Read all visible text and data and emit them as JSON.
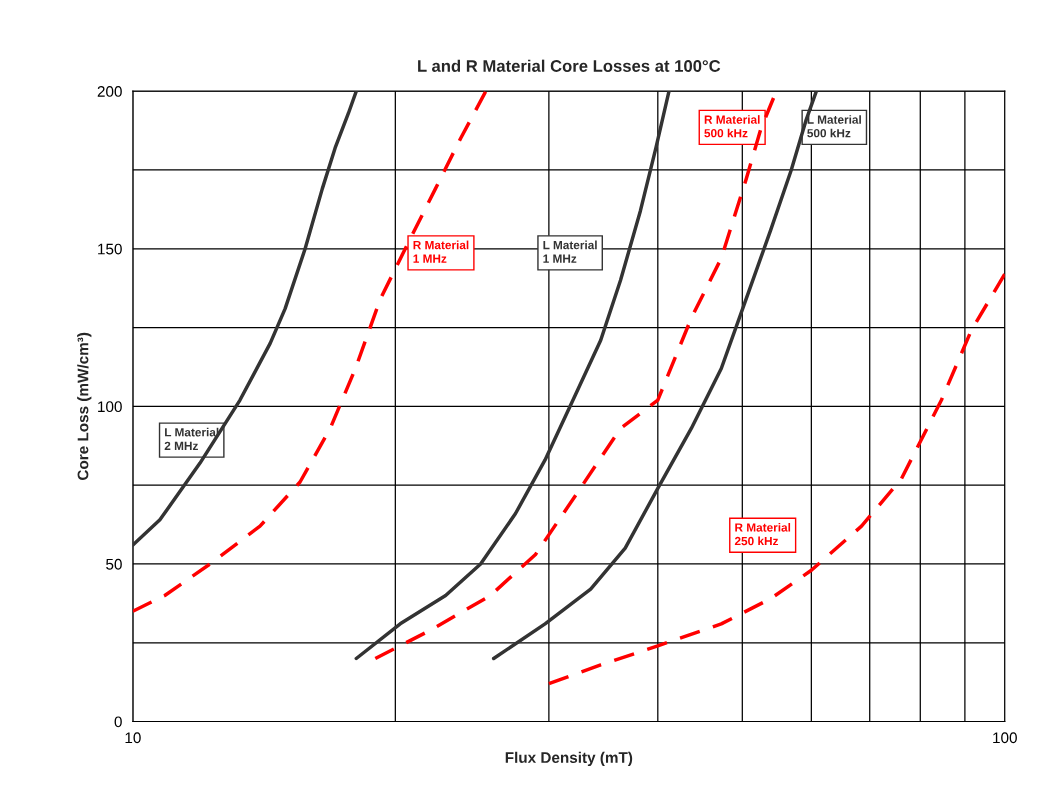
{
  "chart_data": {
    "type": "line",
    "title": "L and R Material Core Losses at 100°C",
    "xlabel": "Flux Density (mT)",
    "ylabel": "Core Loss (mW/cm³)",
    "log": "x",
    "xlim": [
      10,
      100
    ],
    "ylim": [
      0,
      200
    ],
    "xticks": [
      10,
      {
        "value": 20,
        "label": null
      },
      {
        "value": 30,
        "label": null
      },
      {
        "value": 40,
        "label": null
      },
      {
        "value": 50,
        "label": null
      },
      {
        "value": 60,
        "label": null
      },
      {
        "value": 70,
        "label": null
      },
      {
        "value": 80,
        "label": null
      },
      {
        "value": 90,
        "label": null
      },
      100
    ],
    "yticks": [
      0,
      {
        "value": 25,
        "label": null
      },
      50,
      {
        "value": 75,
        "label": null
      },
      100,
      {
        "value": 125,
        "label": null
      },
      150,
      {
        "value": 175,
        "label": null
      },
      200
    ],
    "grid": true,
    "legend": false,
    "marker": "none",
    "series": [
      {
        "color": "#333333",
        "line_style": "solid",
        "x": [
          10,
          10.74,
          11.94,
          13.27,
          14.37,
          14.95,
          15.76,
          16.49,
          17.06,
          17.67,
          18.04
        ],
        "values": [
          56,
          64,
          82,
          102,
          120,
          131,
          150,
          169,
          182,
          193,
          200
        ]
      },
      {
        "color": "#ff0000",
        "line_style": "dashed",
        "x": [
          10,
          10.88,
          12.26,
          13.99,
          15.55,
          16.84,
          18.0,
          19.22,
          20.53,
          22.23,
          23.76,
          25.4
        ],
        "values": [
          35,
          40,
          50,
          62,
          76,
          93,
          112,
          134,
          150,
          169,
          185,
          200
        ]
      },
      {
        "color": "#333333",
        "line_style": "solid",
        "x": [
          18.04,
          20.26,
          22.84,
          25.05,
          27.47,
          29.7,
          32.22,
          34.4,
          36.25,
          38.2,
          39.8,
          41.2
        ],
        "values": [
          20,
          31,
          40,
          50,
          66,
          83,
          104,
          121,
          140,
          162,
          182,
          200
        ]
      },
      {
        "color": "#ff0000",
        "line_style": "dashed",
        "x": [
          18.97,
          21.95,
          25.71,
          28.96,
          32.6,
          36.25,
          40,
          43.7,
          47.3,
          50.5,
          52.5,
          54.7
        ],
        "values": [
          20,
          29,
          40,
          53,
          74,
          93,
          102,
          128,
          147,
          172,
          188,
          200
        ]
      },
      {
        "color": "#333333",
        "line_style": "solid",
        "x": [
          25.93,
          29.7,
          33.5,
          36.7,
          40,
          43.7,
          47.3,
          50.5,
          53.9,
          56.9,
          59.2,
          60.8
        ],
        "values": [
          20,
          31,
          42,
          55,
          74,
          93,
          112,
          134,
          156,
          175,
          191,
          200
        ]
      },
      {
        "color": "#ff0000",
        "line_style": "dashed",
        "x": [
          30,
          34.4,
          40,
          47.3,
          53.9,
          60,
          68.5,
          76.1,
          84.6,
          91.5,
          100
        ],
        "values": [
          12,
          18,
          24,
          31,
          39,
          48,
          62,
          77,
          102,
          124,
          142
        ]
      }
    ],
    "annotations": [
      "L Material\n2 MHz",
      "R Material\n1 MHz",
      "L Material\n1 MHz",
      "R Material\n500 kHz",
      "L Material\n500 kHz",
      "R Material\n250 kHz"
    ]
  }
}
